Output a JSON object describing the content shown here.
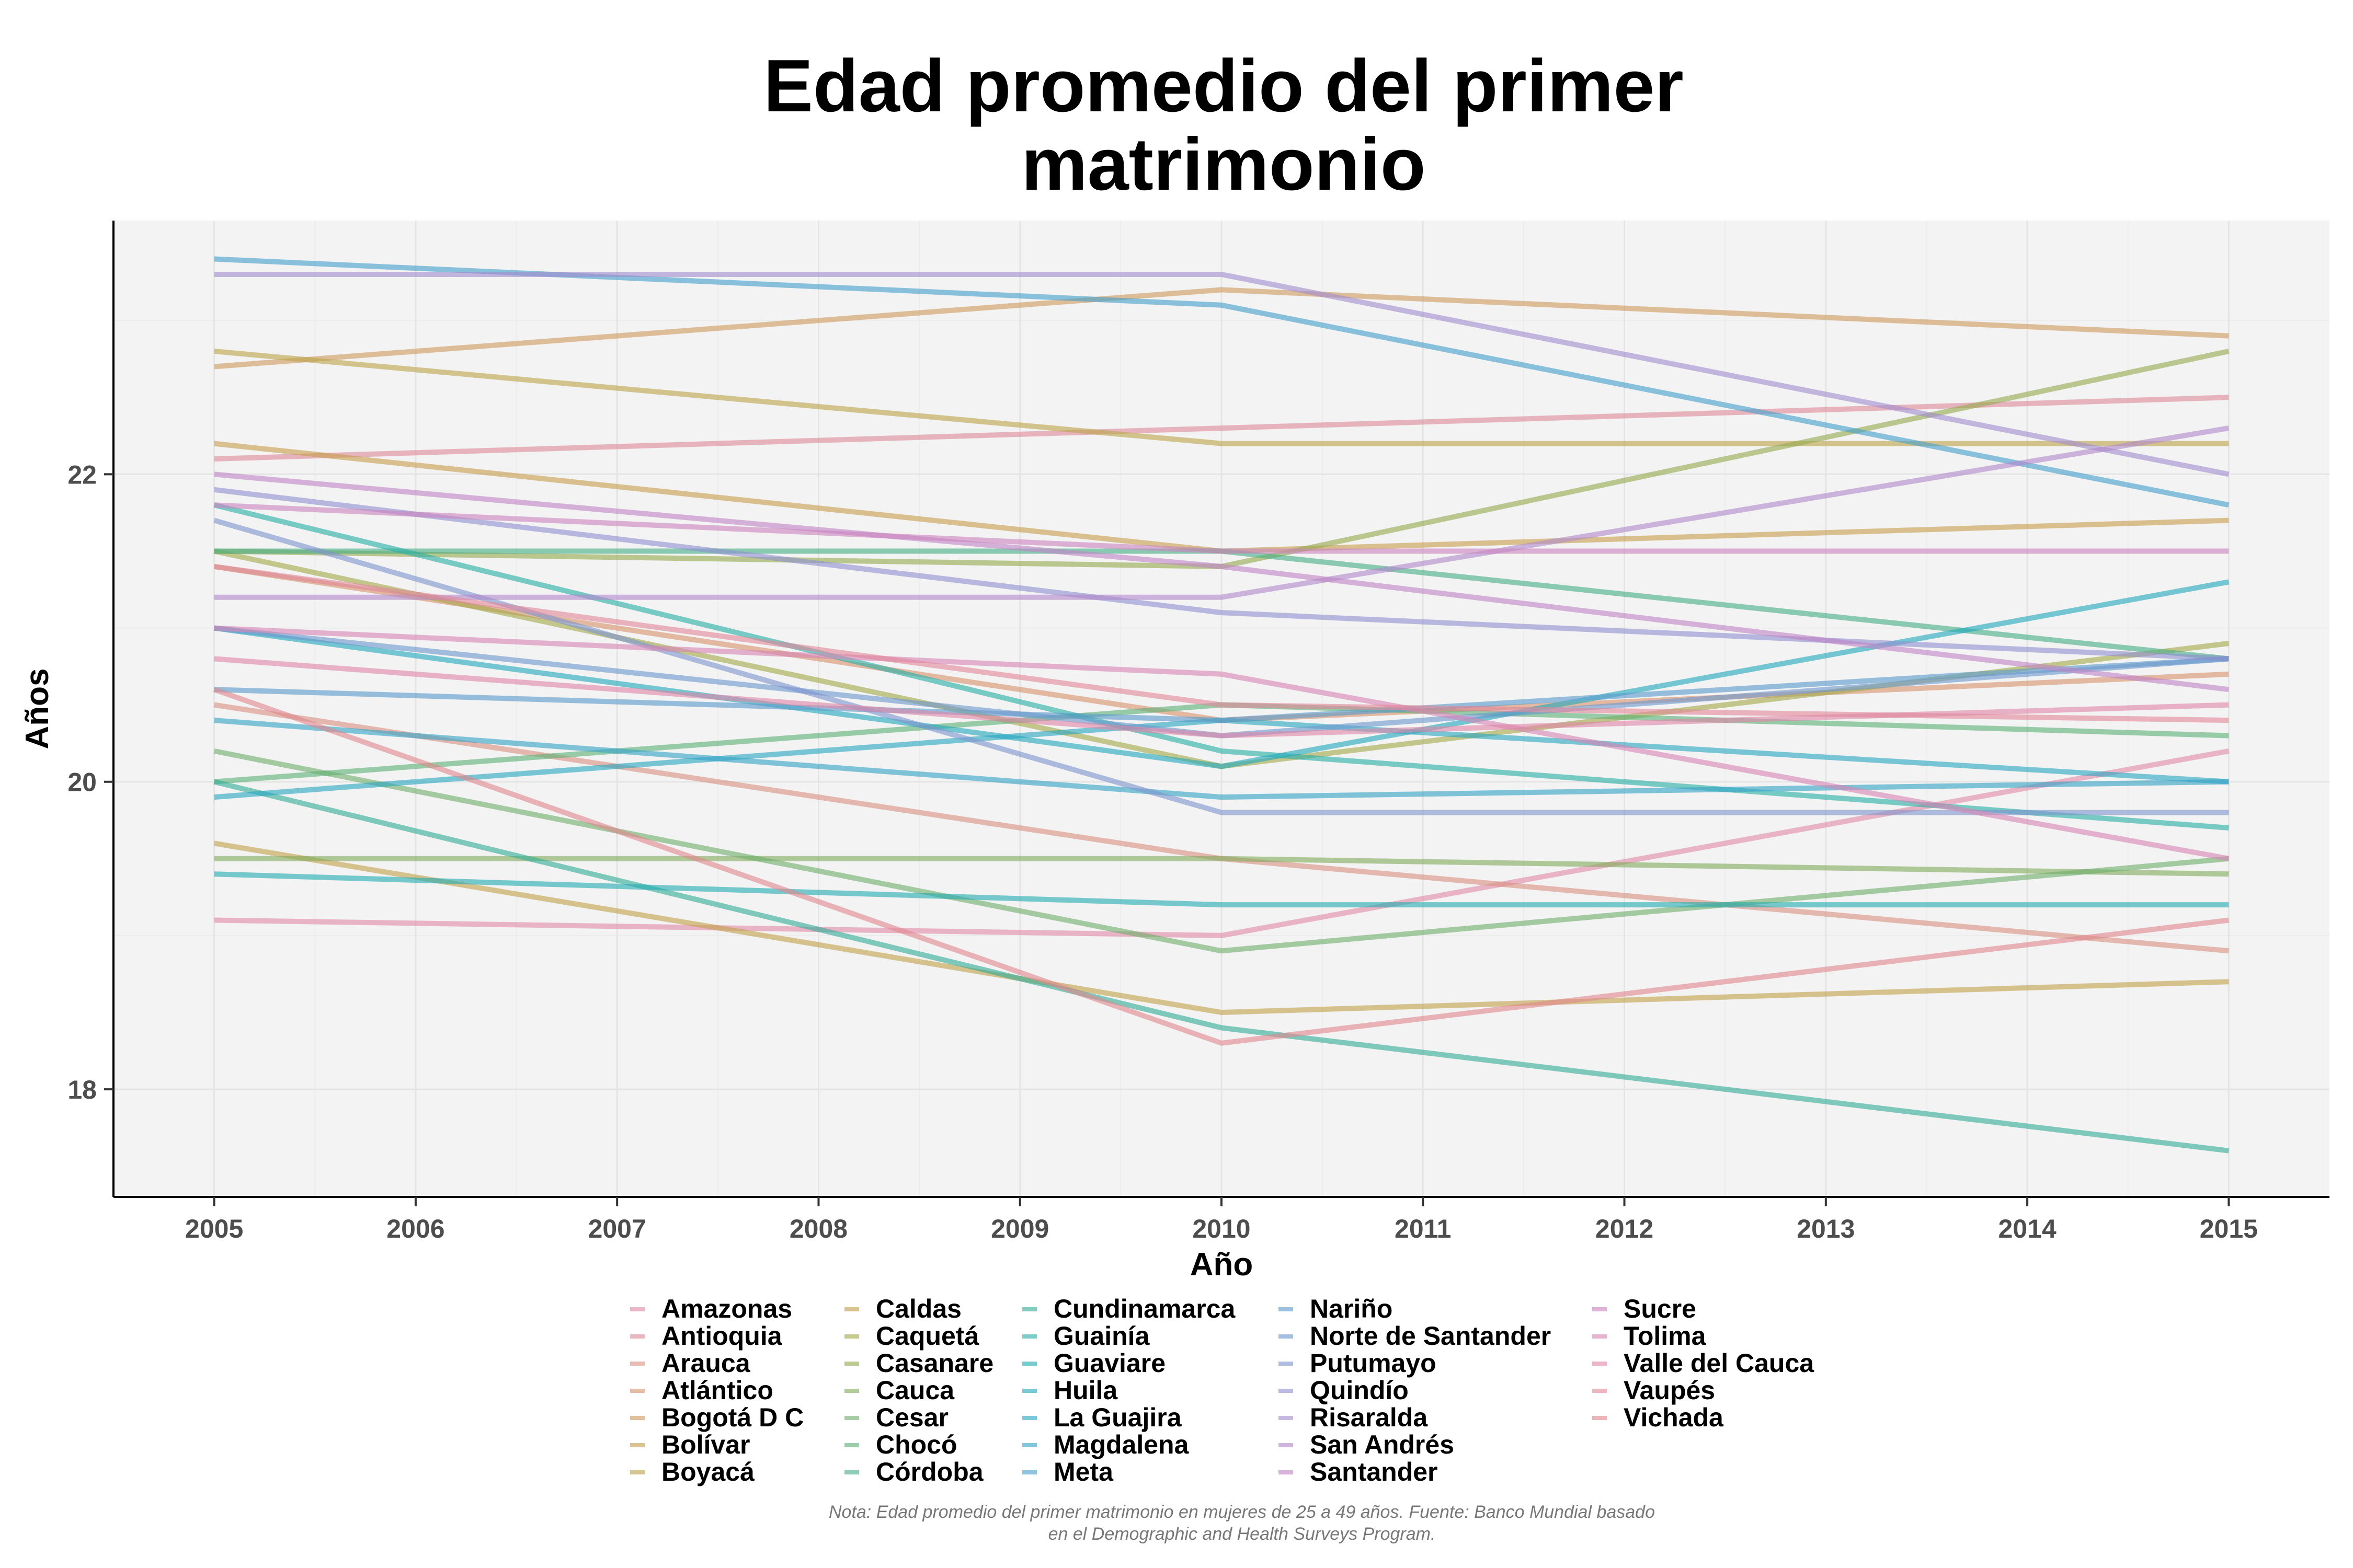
{
  "chart_data": {
    "type": "line",
    "title_lines": [
      "Edad promedio del primer",
      "matrimonio"
    ],
    "xlabel": "Año",
    "ylabel": "Años",
    "x_ticks": [
      "2005",
      "2006",
      "2007",
      "2008",
      "2009",
      "2010",
      "2011",
      "2012",
      "2013",
      "2014",
      "2015"
    ],
    "y_ticks": [
      "18",
      "20",
      "22"
    ],
    "xlim": [
      2004.5,
      2015.5
    ],
    "ylim": [
      17.3,
      23.65
    ],
    "grid": true,
    "legend_position": "bottom",
    "x": [
      2005,
      2010,
      2015
    ],
    "series": [
      {
        "name": "Amazonas",
        "color": "#e08aa6",
        "values": [
          19.1,
          19.0,
          20.2
        ]
      },
      {
        "name": "Antioquia",
        "color": "#dd8a9a",
        "values": [
          22.1,
          22.3,
          22.5
        ]
      },
      {
        "name": "Arauca",
        "color": "#d99183",
        "values": [
          20.5,
          19.5,
          18.9
        ]
      },
      {
        "name": "Atlántico",
        "color": "#d6936e",
        "values": [
          21.4,
          20.4,
          20.7
        ]
      },
      {
        "name": "Bogotá D C",
        "color": "#cf9a5f",
        "values": [
          22.7,
          23.2,
          22.9
        ]
      },
      {
        "name": "Bolívar",
        "color": "#c69e4e",
        "values": [
          22.2,
          21.5,
          21.7
        ]
      },
      {
        "name": "Boyacá",
        "color": "#bba54a",
        "values": [
          22.8,
          22.2,
          22.2
        ]
      },
      {
        "name": "Caldas",
        "color": "#c2a14a",
        "values": [
          19.6,
          18.5,
          18.7
        ]
      },
      {
        "name": "Caquetá",
        "color": "#a5a94a",
        "values": [
          21.5,
          20.1,
          20.9
        ]
      },
      {
        "name": "Casanare",
        "color": "#95aa4e",
        "values": [
          21.5,
          21.4,
          22.8
        ]
      },
      {
        "name": "Cauca",
        "color": "#82ab5c",
        "values": [
          19.5,
          19.5,
          19.4
        ]
      },
      {
        "name": "Cesar",
        "color": "#6fae6a",
        "values": [
          20.2,
          18.9,
          19.5
        ]
      },
      {
        "name": "Chocó",
        "color": "#5eb077",
        "values": [
          20.0,
          20.5,
          20.3
        ]
      },
      {
        "name": "Córdoba",
        "color": "#48ae88",
        "values": [
          21.5,
          21.5,
          20.8
        ]
      },
      {
        "name": "Cundinamarca",
        "color": "#33ad98",
        "values": [
          20.0,
          18.4,
          17.6
        ]
      },
      {
        "name": "Guainía",
        "color": "#2aaea6",
        "values": [
          21.8,
          20.2,
          19.7
        ]
      },
      {
        "name": "Guaviare",
        "color": "#25adb3",
        "values": [
          19.4,
          19.2,
          19.2
        ]
      },
      {
        "name": "Huila",
        "color": "#24aabb",
        "values": [
          21.0,
          20.1,
          21.3
        ]
      },
      {
        "name": "La Guajira",
        "color": "#2aa6c2",
        "values": [
          19.9,
          20.4,
          20.0
        ]
      },
      {
        "name": "Magdalena",
        "color": "#35a3c6",
        "values": [
          20.4,
          19.9,
          20.0
        ]
      },
      {
        "name": "Meta",
        "color": "#469fcb",
        "values": [
          23.4,
          23.1,
          21.8
        ]
      },
      {
        "name": "Nariño",
        "color": "#5b9bcc",
        "values": [
          20.6,
          20.4,
          20.8
        ]
      },
      {
        "name": "Norte de Santander",
        "color": "#6d97cd",
        "values": [
          21.0,
          20.3,
          20.8
        ]
      },
      {
        "name": "Putumayo",
        "color": "#7e94cf",
        "values": [
          21.7,
          19.8,
          19.8
        ]
      },
      {
        "name": "Quindío",
        "color": "#8f90d0",
        "values": [
          21.9,
          21.1,
          20.8
        ]
      },
      {
        "name": "Risaralda",
        "color": "#a18ccf",
        "values": [
          23.3,
          23.3,
          22.0
        ]
      },
      {
        "name": "San Andrés",
        "color": "#b189cc",
        "values": [
          21.2,
          21.2,
          22.3
        ]
      },
      {
        "name": "Santander",
        "color": "#c085c6",
        "values": [
          22.0,
          21.4,
          20.6
        ]
      },
      {
        "name": "Sucre",
        "color": "#cc84be",
        "values": [
          21.8,
          21.5,
          21.5
        ]
      },
      {
        "name": "Tolima",
        "color": "#d685b4",
        "values": [
          21.0,
          20.7,
          19.5
        ]
      },
      {
        "name": "Valle del Cauca",
        "color": "#de86a8",
        "values": [
          20.8,
          20.3,
          20.5
        ]
      },
      {
        "name": "Vaupés",
        "color": "#e0879a",
        "values": [
          21.4,
          20.5,
          20.4
        ]
      },
      {
        "name": "Vichada",
        "color": "#e0878e",
        "values": [
          20.6,
          18.3,
          19.1
        ]
      }
    ],
    "note_lines": [
      "Nota: Edad promedio del primer matrimonio en mujeres de 25 a 49 años. Fuente: Banco Mundial basado",
      "en el Demographic and Health Surveys Program."
    ]
  }
}
